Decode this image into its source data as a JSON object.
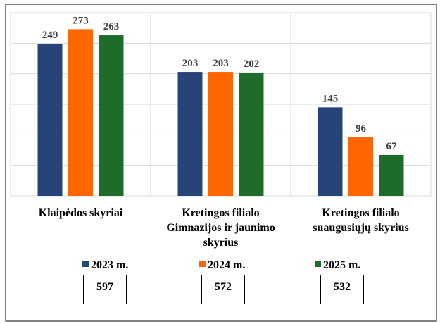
{
  "chart_data": {
    "type": "bar",
    "categories": [
      "Klaipėdos skyriai",
      "Kretingos filialo Gimnazijos ir jaunimo skyrius",
      "Kretingos filialo suaugusiųjų skyrius"
    ],
    "series": [
      {
        "name": "2023 m.",
        "color": "#264478",
        "values": [
          249,
          203,
          145
        ]
      },
      {
        "name": "2024 m.",
        "color": "#ff6600",
        "values": [
          273,
          203,
          96
        ]
      },
      {
        "name": "2025 m.",
        "color": "#1e6b2a",
        "values": [
          263,
          202,
          67
        ]
      }
    ],
    "totals": [
      597,
      572,
      532
    ],
    "ylim": [
      0,
      300
    ],
    "yticks": [
      0,
      50,
      100,
      150,
      200,
      250,
      300
    ],
    "grid": true
  }
}
